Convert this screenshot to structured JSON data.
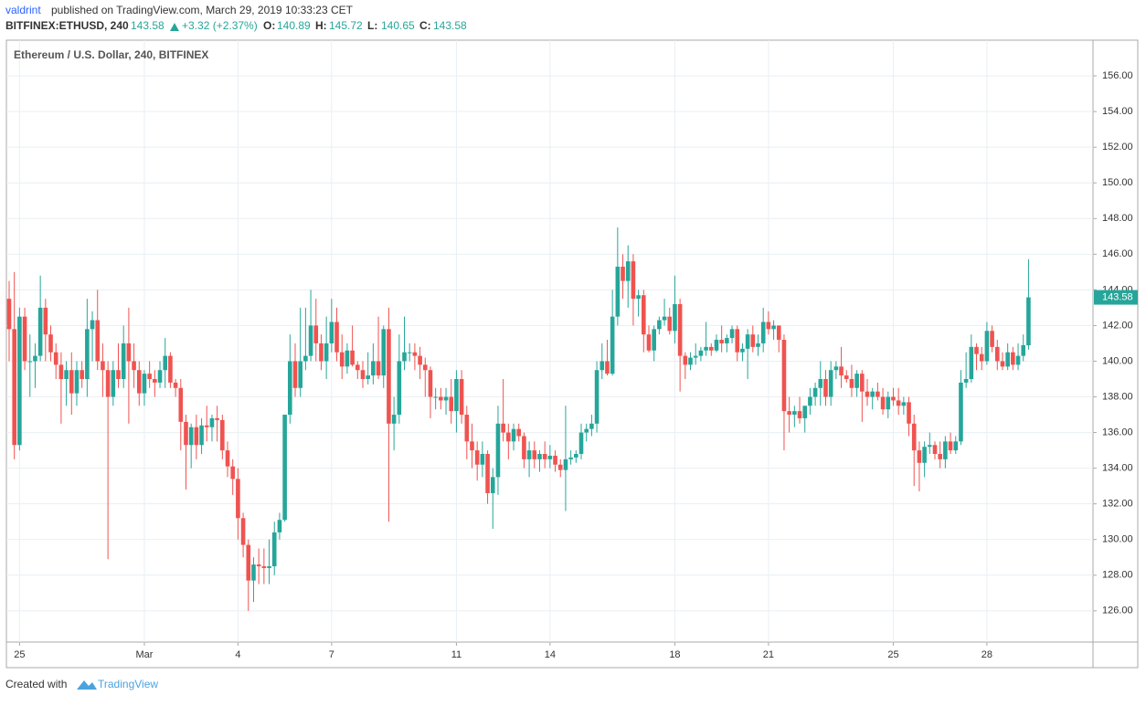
{
  "header": {
    "publisher": "valdrint",
    "published": "published on TradingView.com, March 29, 2019 10:33:23 CET",
    "symbol": "BITFINEX:ETHUSD, 240",
    "last": "143.58",
    "change": "+3.32 (+2.37%)",
    "ohlc": [
      {
        "label": "O:",
        "value": "140.89"
      },
      {
        "label": "H:",
        "value": "145.72"
      },
      {
        "label": "L:",
        "value": "140.65"
      },
      {
        "label": "C:",
        "value": "143.58"
      }
    ]
  },
  "footer": {
    "created": "Created with",
    "brand": "TradingView"
  },
  "chart_data": {
    "type": "candlestick",
    "title": "Ethereum / U.S. Dollar, 240, BITFINEX",
    "up_color": "#26a69a",
    "down_color": "#ef5350",
    "grid": true,
    "xlim": [
      -0.35,
      208.4
    ],
    "ylim": [
      124.25,
      157.95
    ],
    "xticks": [
      {
        "value": 2,
        "label": "25"
      },
      {
        "value": 26,
        "label": "Mar"
      },
      {
        "value": 44,
        "label": "4"
      },
      {
        "value": 62,
        "label": "7"
      },
      {
        "value": 86,
        "label": "11"
      },
      {
        "value": 104,
        "label": "14"
      },
      {
        "value": 128,
        "label": "18"
      },
      {
        "value": 146,
        "label": "21"
      },
      {
        "value": 170,
        "label": "25"
      },
      {
        "value": 188,
        "label": "28"
      }
    ],
    "yticks": [
      {
        "value": 126,
        "label": "126.00"
      },
      {
        "value": 128,
        "label": "128.00"
      },
      {
        "value": 130,
        "label": "130.00"
      },
      {
        "value": 132,
        "label": "132.00"
      },
      {
        "value": 134,
        "label": "134.00"
      },
      {
        "value": 136,
        "label": "136.00"
      },
      {
        "value": 138,
        "label": "138.00"
      },
      {
        "value": 140,
        "label": "140.00"
      },
      {
        "value": 142,
        "label": "142.00"
      },
      {
        "value": 144,
        "label": "144.00"
      },
      {
        "value": 146,
        "label": "146.00"
      },
      {
        "value": 148,
        "label": "148.00"
      },
      {
        "value": 150,
        "label": "150.00"
      },
      {
        "value": 152,
        "label": "152.00"
      },
      {
        "value": 154,
        "label": "154.00"
      },
      {
        "value": 156,
        "label": "156.00"
      }
    ],
    "open": [
      143.5,
      141.8,
      135.3,
      142.5,
      140,
      140,
      140.3,
      143,
      141.5,
      140.5,
      139.8,
      139,
      139.5,
      138.2,
      139.5,
      139,
      141.8,
      142.3,
      140,
      139.5,
      138,
      139.5,
      139,
      141,
      140,
      139.5,
      138.2,
      139.3,
      139,
      138.8,
      139.5,
      140.3,
      138.8,
      138.5,
      136.6,
      135.3,
      136.3,
      135.3,
      136.4,
      136.3,
      136.8,
      136.7,
      135,
      134.1,
      133.4,
      131.2,
      129.7,
      127.7,
      128.6,
      128.5,
      128.4,
      128.5,
      130.4,
      131.1,
      137,
      140,
      138.5,
      140,
      140.3,
      142,
      141,
      140,
      141,
      142.2,
      140.5,
      139.7,
      140.6,
      139.8,
      139.5,
      139,
      139.2,
      140,
      139.2,
      141.8,
      136.5,
      137,
      140,
      140.5,
      140.5,
      140.3,
      139.8,
      139.5,
      138,
      138,
      137.8,
      138,
      137.2,
      139,
      137,
      135.5,
      135,
      134.2,
      134.8,
      132.6,
      133.5,
      136.5,
      136,
      135.5,
      136.2,
      135.8,
      134.5,
      135,
      134.5,
      134.8,
      134.5,
      134.7,
      134.2,
      133.9,
      134.5,
      134.6,
      134.8,
      136,
      136.2,
      136.5,
      139.5,
      140,
      139.3,
      142.5,
      145.3,
      144.5,
      145.6,
      143.5,
      143.7,
      141.5,
      140.6,
      141.8,
      142.3,
      142.5,
      141.7,
      143.2,
      140.3,
      139.8,
      140.2,
      140.3,
      140.6,
      140.8,
      140.6,
      141.2,
      141,
      141.3,
      141.8,
      140.5,
      140.7,
      141.5,
      140.8,
      141,
      142.2,
      141.8,
      142,
      141.2,
      137.2,
      137,
      137.2,
      136.8,
      137.5,
      138,
      138.5,
      139,
      138,
      139.5,
      139.7,
      139.2,
      139,
      138.5,
      139.3,
      138.3,
      138,
      138.3,
      138,
      137.3,
      138,
      137.8,
      137.5,
      137.7,
      136.5,
      135,
      134.3,
      135.2,
      135.3,
      134.8,
      134.5,
      135.5,
      135,
      135.5,
      138.8,
      139,
      140.8,
      140.4,
      140,
      141.7,
      140.8,
      140,
      139.7,
      140.5,
      139.8,
      140.3,
      140.89
    ],
    "high": [
      144.5,
      145,
      143,
      143,
      141.5,
      141,
      144.8,
      143.5,
      142,
      141,
      140.5,
      140,
      140.5,
      140,
      140,
      143.5,
      142.8,
      144,
      141,
      140,
      140,
      141,
      142,
      143,
      141,
      140,
      139.5,
      140,
      139.5,
      140,
      141.3,
      140.5,
      139,
      139,
      137,
      136.5,
      137,
      136.8,
      137.5,
      137,
      137.5,
      137,
      135.5,
      134.5,
      134,
      131.5,
      130,
      129,
      129.5,
      129.5,
      130,
      131,
      131.5,
      137,
      141.5,
      141,
      143,
      143,
      144,
      143.5,
      141.5,
      142.5,
      143.5,
      143,
      141.5,
      141,
      142,
      140,
      140,
      140.5,
      141,
      142.5,
      142,
      143,
      138,
      141.5,
      142.5,
      141,
      141,
      140.8,
      140.2,
      139.7,
      138.5,
      138.5,
      138.5,
      139,
      139.5,
      139.5,
      137.5,
      136.5,
      135.5,
      135.5,
      135,
      134,
      137.5,
      139,
      136.5,
      136.5,
      136.5,
      136,
      135.5,
      135.5,
      135,
      135.5,
      135.3,
      135,
      134.5,
      137.5,
      135,
      135,
      136.5,
      136.5,
      137,
      140,
      141,
      141.2,
      144,
      147.5,
      146,
      146.5,
      146,
      144,
      144,
      142,
      142,
      142.5,
      143.5,
      143,
      144.8,
      143.5,
      140.5,
      140.5,
      141,
      140.8,
      142.2,
      141,
      141.5,
      142,
      141.5,
      142,
      142,
      141,
      141.8,
      142,
      141.5,
      143,
      142.8,
      142.3,
      142,
      141.5,
      138,
      137.5,
      138,
      137.5,
      138.5,
      138.8,
      140,
      139.5,
      140,
      140,
      140.8,
      139.5,
      139.8,
      139.5,
      139.5,
      139,
      138.5,
      138.8,
      138.5,
      138.3,
      138.5,
      138.5,
      138,
      138,
      137,
      135.5,
      135.5,
      136,
      135.5,
      135.5,
      135.8,
      136,
      135.8,
      139.5,
      140.5,
      141.5,
      141,
      140.8,
      142.2,
      142,
      141.2,
      140.5,
      141,
      140.8,
      141,
      141.5,
      145.72
    ],
    "low": [
      140,
      134.5,
      135,
      139.5,
      138,
      138.5,
      140,
      140,
      140,
      139,
      136.5,
      137.5,
      137,
      137.5,
      138.5,
      138,
      140,
      139.5,
      138,
      128.9,
      137.5,
      138.5,
      138.5,
      136.5,
      138.5,
      137.5,
      137.5,
      138.5,
      138,
      138.5,
      138.5,
      138.5,
      138,
      135,
      132.8,
      134,
      134.5,
      134.8,
      135.5,
      135.5,
      135.5,
      134.5,
      133.5,
      132.5,
      130,
      129,
      126,
      126.5,
      127.5,
      127.5,
      127.5,
      128,
      130,
      131,
      136.5,
      138,
      138,
      139.5,
      140,
      140,
      139.5,
      139,
      140.5,
      140,
      139,
      139.3,
      139.7,
      139,
      138.5,
      138.7,
      138.7,
      139,
      138.5,
      131,
      135,
      136.5,
      139.5,
      140,
      139.5,
      139,
      138,
      136.8,
      137.3,
      137.3,
      137,
      136.5,
      136,
      136.5,
      134.5,
      134,
      133.3,
      133.5,
      132,
      130.6,
      132.5,
      135.5,
      134.5,
      135,
      135.5,
      134,
      133.5,
      134,
      133.8,
      134,
      134,
      133.8,
      133.5,
      131.6,
      134.2,
      134.3,
      134.5,
      135.5,
      135.8,
      136,
      139,
      139.2,
      139.2,
      142,
      143.5,
      143,
      142,
      142.5,
      140.5,
      140.5,
      140,
      141.5,
      142,
      141.5,
      141,
      138.3,
      139,
      139.5,
      139.8,
      140,
      140.3,
      140.3,
      140.5,
      140.5,
      140.5,
      141,
      140,
      140,
      139,
      140.5,
      140.3,
      140.5,
      141.5,
      141.2,
      140.5,
      135,
      136,
      136.3,
      136.5,
      136,
      137,
      137.5,
      137.5,
      137.5,
      137.5,
      139,
      138.5,
      138.8,
      138,
      138,
      136.6,
      137.5,
      137.3,
      137.8,
      137,
      136.8,
      137.5,
      137,
      137,
      135.8,
      133,
      132.7,
      133.5,
      134.8,
      134.5,
      134,
      134,
      134.8,
      134.8,
      135.3,
      138.5,
      138.8,
      139.5,
      139.5,
      139.8,
      140.5,
      139.5,
      139.5,
      139.5,
      139.5,
      139.5,
      140,
      140.65
    ],
    "close": [
      141.8,
      135.3,
      142.5,
      140,
      140,
      140.3,
      143,
      141.5,
      140.5,
      139.8,
      139,
      139.5,
      138.2,
      139.5,
      139,
      141.8,
      142.3,
      140,
      139.5,
      138,
      139.5,
      139,
      141,
      140,
      139.5,
      138.2,
      139.3,
      139,
      138.8,
      139.5,
      140.3,
      138.8,
      138.5,
      136.6,
      135.3,
      136.3,
      135.3,
      136.4,
      136.3,
      136.8,
      136.7,
      135,
      134.1,
      133.4,
      131.2,
      129.7,
      127.7,
      128.6,
      128.5,
      128.4,
      128.5,
      130.4,
      131.1,
      137,
      140,
      138.5,
      140,
      140.3,
      142,
      141,
      140,
      141,
      142.2,
      140.5,
      139.7,
      140.6,
      139.8,
      139.5,
      139,
      139.2,
      140,
      139.2,
      141.8,
      136.5,
      137,
      140,
      140.5,
      140.5,
      140.3,
      139.8,
      139.5,
      138,
      138,
      137.8,
      138,
      137.2,
      139,
      137,
      135.5,
      135,
      134.2,
      134.8,
      132.6,
      133.5,
      136.5,
      136,
      135.5,
      136.2,
      135.8,
      134.5,
      135,
      134.5,
      134.8,
      134.5,
      134.7,
      134.2,
      133.9,
      134.5,
      134.6,
      134.8,
      136,
      136.2,
      136.5,
      139.5,
      140,
      139.3,
      142.5,
      145.3,
      144.5,
      145.6,
      143.5,
      143.7,
      141.5,
      140.6,
      141.8,
      142.3,
      142.5,
      141.7,
      143.2,
      140.3,
      139.8,
      140.2,
      140.3,
      140.6,
      140.8,
      140.6,
      141.2,
      141,
      141.3,
      141.8,
      140.5,
      140.7,
      141.5,
      140.8,
      141,
      142.2,
      141.8,
      142,
      141.2,
      137.2,
      137,
      137.2,
      136.8,
      137.5,
      138,
      138.5,
      139,
      138,
      139.5,
      139.7,
      139.2,
      139,
      138.5,
      139.3,
      138.3,
      138,
      138.3,
      138,
      137.3,
      138,
      137.8,
      137.5,
      137.7,
      136.5,
      135,
      134.3,
      135.2,
      135.3,
      134.8,
      134.5,
      135.5,
      135,
      135.5,
      138.8,
      139,
      140.8,
      140.4,
      140,
      141.7,
      140.8,
      140,
      139.7,
      140.5,
      139.8,
      140.3,
      140.9,
      143.58
    ]
  }
}
